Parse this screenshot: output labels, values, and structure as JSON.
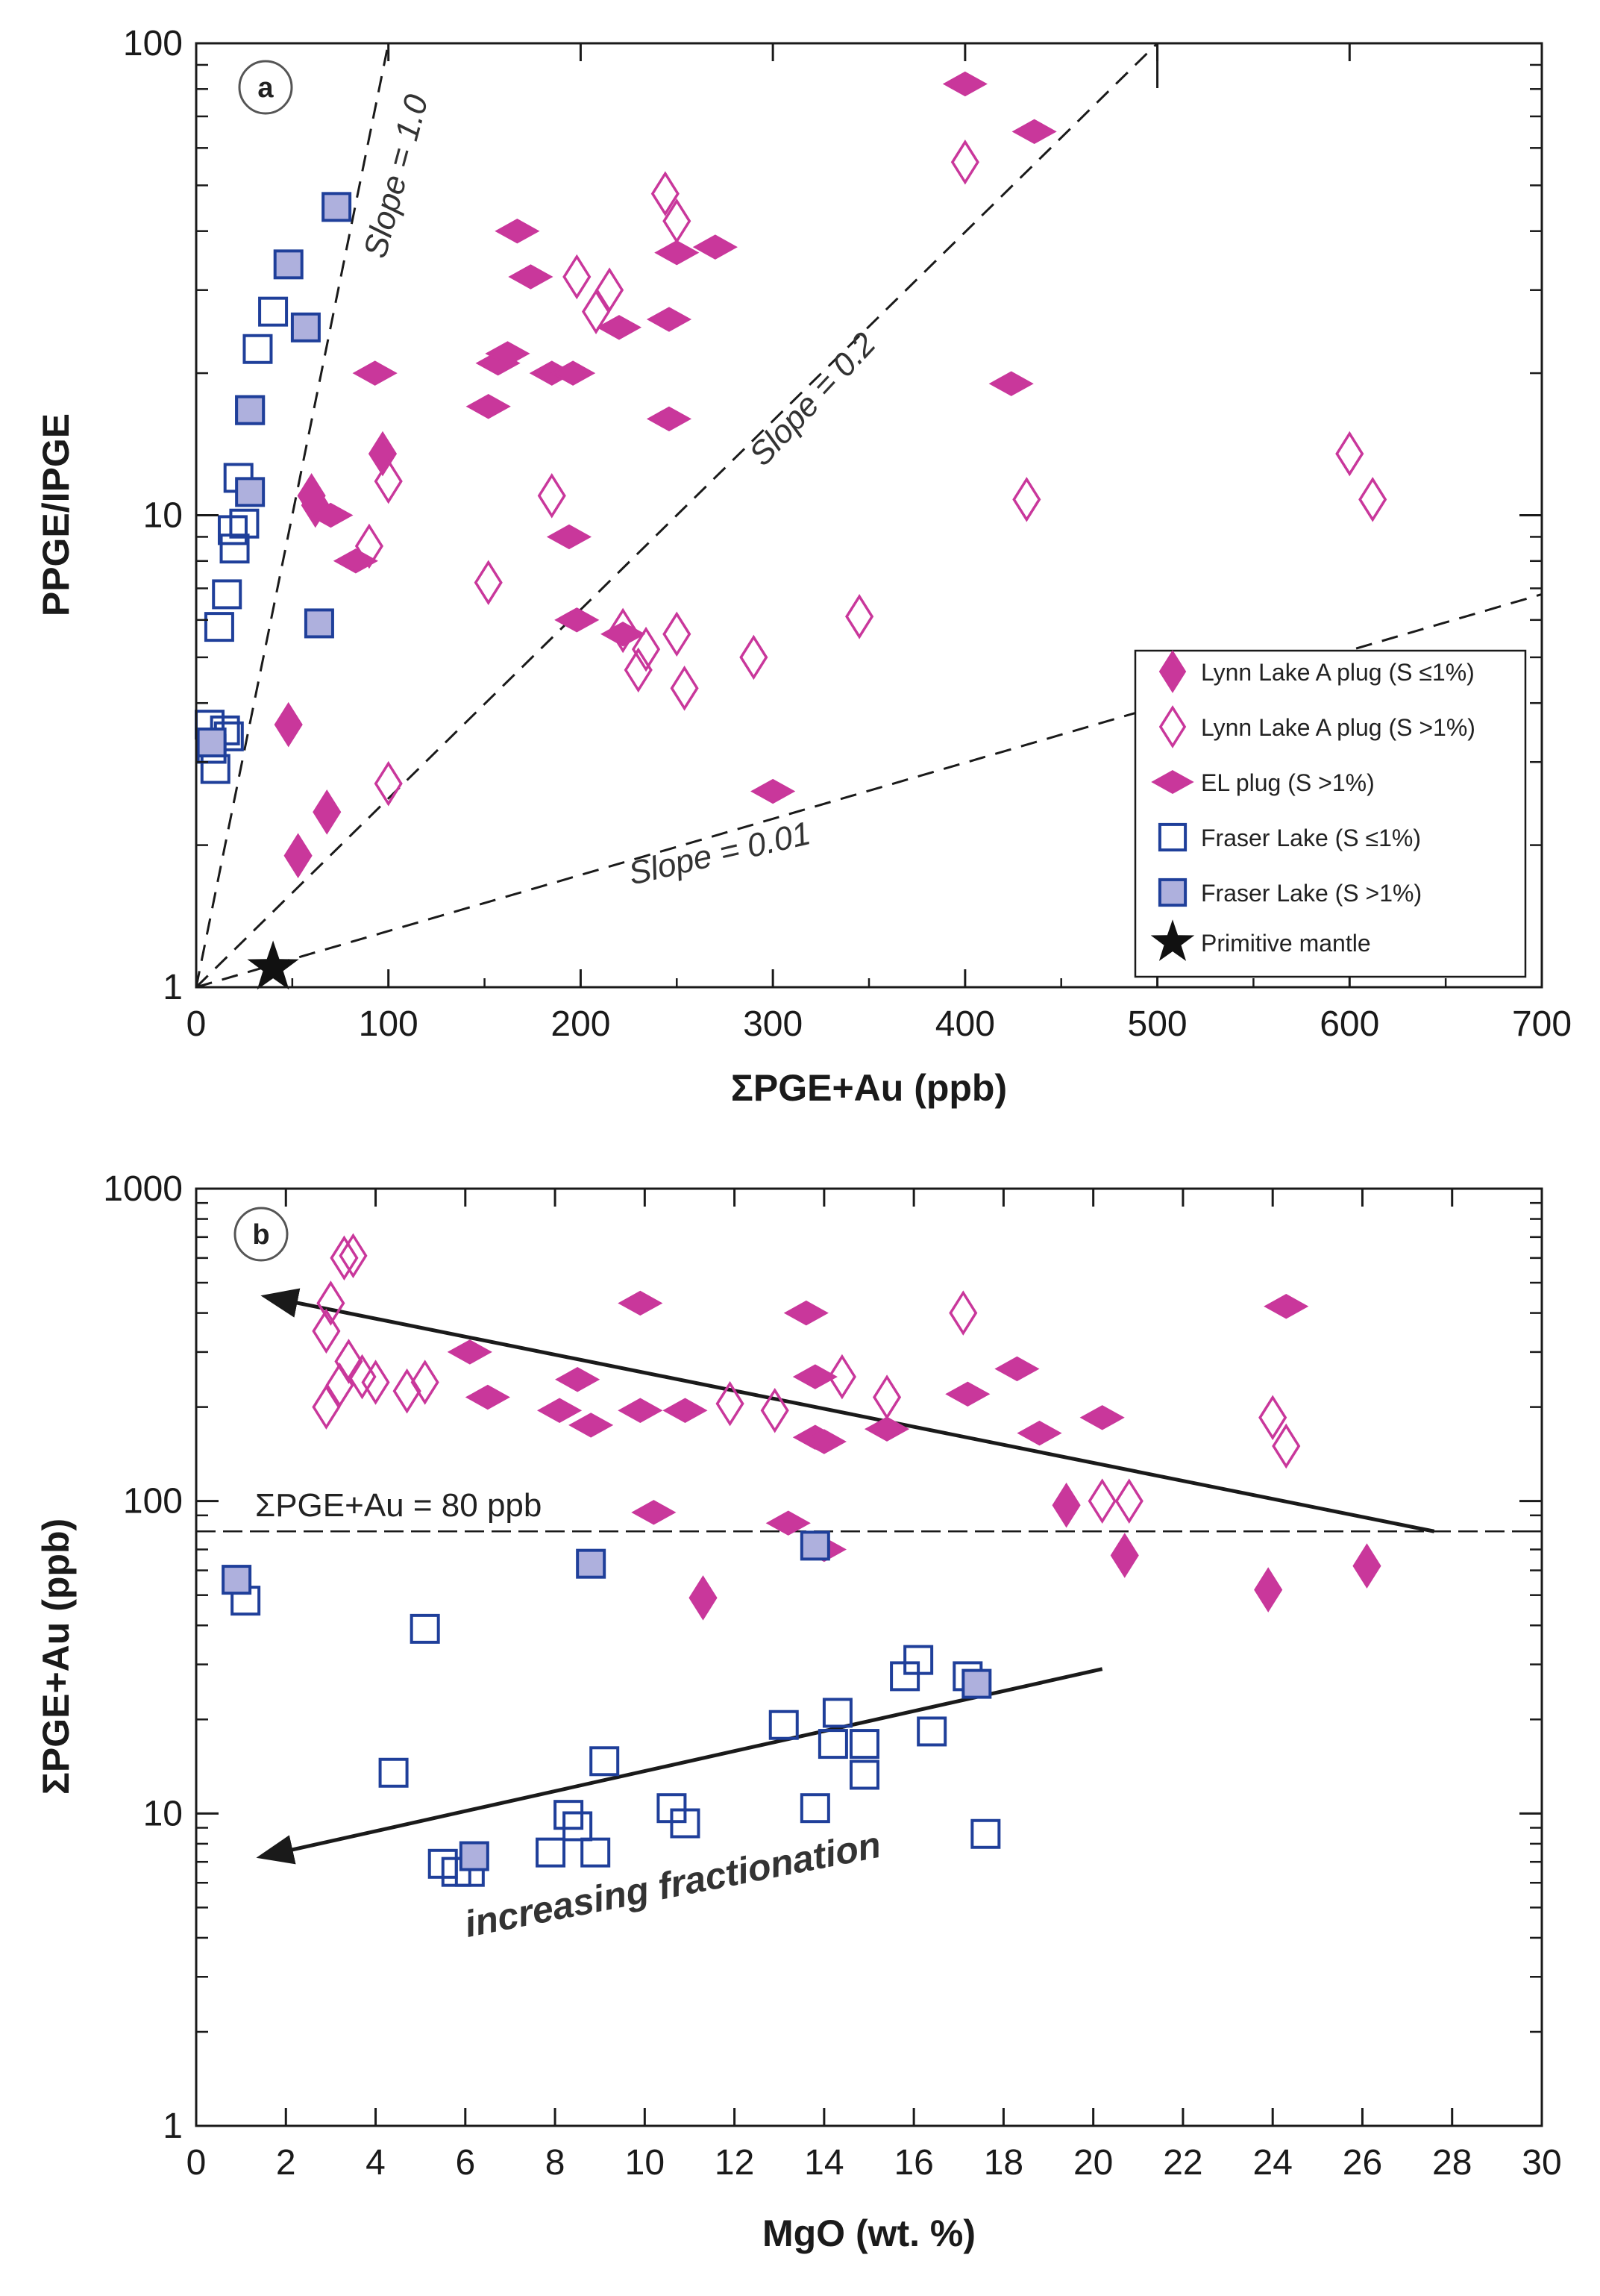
{
  "colors": {
    "magenta": "#c9379b",
    "blue": "#1f3f9a",
    "lightblue": "#aeb0dd",
    "black": "#111111"
  },
  "chart_data": [
    {
      "panel": "a",
      "type": "scatter",
      "xscale": "linear",
      "yscale": "log",
      "xlim": [
        0,
        700
      ],
      "ylim": [
        1,
        100
      ],
      "xlabel": "ΣPGE+Au (ppb)",
      "ylabel": "PPGE/IPGE",
      "xticks": [
        0,
        100,
        200,
        300,
        400,
        500,
        600,
        700
      ],
      "yticks": [
        1,
        10,
        100
      ],
      "lines": [
        {
          "label": "Slope = 1.0",
          "points": [
            [
              0,
              1
            ],
            [
              100,
              100
            ]
          ]
        },
        {
          "label": "Slope = 0.2",
          "points": [
            [
              0,
              1
            ],
            [
              500,
              100
            ]
          ]
        },
        {
          "label": "Slope = 0.01",
          "points": [
            [
              0,
              1
            ],
            [
              700,
              6.8
            ]
          ]
        }
      ],
      "series": [
        {
          "name": "Lynn Lake A plug (S ≤1%)",
          "marker": "diamond-tall-filled",
          "points": [
            [
              48,
              3.6
            ],
            [
              53,
              1.9
            ],
            [
              60,
              11
            ],
            [
              62,
              10.5
            ],
            [
              68,
              2.35
            ],
            [
              97,
              13.5
            ]
          ]
        },
        {
          "name": "Lynn Lake A plug (S >1%)",
          "marker": "diamond-tall-open",
          "points": [
            [
              90,
              8.6
            ],
            [
              100,
              11.8
            ],
            [
              100,
              2.7
            ],
            [
              152,
              7.2
            ],
            [
              185,
              11
            ],
            [
              198,
              32
            ],
            [
              208,
              27
            ],
            [
              215,
              30
            ],
            [
              222,
              5.7
            ],
            [
              230,
              4.7
            ],
            [
              234,
              5.2
            ],
            [
              244,
              48
            ],
            [
              250,
              5.6
            ],
            [
              250,
              42
            ],
            [
              254,
              4.3
            ],
            [
              290,
              5
            ],
            [
              345,
              6.1
            ],
            [
              400,
              56
            ],
            [
              432,
              10.8
            ],
            [
              600,
              13.5
            ],
            [
              612,
              10.8
            ]
          ]
        },
        {
          "name": "EL plug (S >1%)",
          "marker": "diamond-wide-filled",
          "points": [
            [
              70,
              10
            ],
            [
              83,
              8
            ],
            [
              93,
              20
            ],
            [
              152,
              17
            ],
            [
              157,
              21
            ],
            [
              162,
              22
            ],
            [
              167,
              40
            ],
            [
              174,
              32
            ],
            [
              185,
              20
            ],
            [
              196,
              20
            ],
            [
              198,
              6
            ],
            [
              194,
              9
            ],
            [
              220,
              25
            ],
            [
              222,
              5.6
            ],
            [
              246,
              26
            ],
            [
              246,
              16
            ],
            [
              250,
              36
            ],
            [
              270,
              37
            ],
            [
              300,
              2.6
            ],
            [
              400,
              82
            ],
            [
              424,
              19
            ],
            [
              436,
              65
            ]
          ]
        },
        {
          "name": "Fraser Lake (S ≤1%)",
          "marker": "square-open",
          "points": [
            [
              7,
              3.6
            ],
            [
              8,
              3.2
            ],
            [
              10,
              2.9
            ],
            [
              12,
              5.8
            ],
            [
              15,
              3.5
            ],
            [
              16,
              6.8
            ],
            [
              17,
              3.4
            ],
            [
              19,
              9.3
            ],
            [
              20,
              8.5
            ],
            [
              22,
              12
            ],
            [
              25,
              9.6
            ],
            [
              28,
              16.7
            ],
            [
              32,
              22.5
            ],
            [
              40,
              27
            ]
          ]
        },
        {
          "name": "Fraser Lake (S >1%)",
          "marker": "square-filled",
          "points": [
            [
              8,
              3.3
            ],
            [
              28,
              16.7
            ],
            [
              28,
              11.2
            ],
            [
              48,
              34
            ],
            [
              57,
              25
            ],
            [
              64,
              5.9
            ],
            [
              73,
              45
            ]
          ]
        },
        {
          "name": "Primitive mantle",
          "marker": "star",
          "points": [
            [
              40,
              1.1
            ]
          ]
        }
      ],
      "legend": [
        "Lynn Lake A plug (S ≤1%)",
        "Lynn Lake A plug (S >1%)",
        "EL plug (S >1%)",
        "Fraser Lake (S ≤1%)",
        "Fraser Lake (S >1%)",
        "Primitive mantle"
      ]
    },
    {
      "panel": "b",
      "type": "scatter",
      "xscale": "linear",
      "yscale": "log",
      "xlim": [
        0,
        30
      ],
      "ylim": [
        1,
        1000
      ],
      "xlabel": "MgO (wt. %)",
      "ylabel": "ΣPGE+Au (ppb)",
      "xticks": [
        0,
        2,
        4,
        6,
        8,
        10,
        12,
        14,
        16,
        18,
        20,
        22,
        24,
        26,
        28,
        30
      ],
      "yticks": [
        1,
        10,
        100,
        1000
      ],
      "hline": {
        "y": 80,
        "label": "ΣPGE+Au = 80 ppb"
      },
      "arrows": [
        {
          "from": [
            27.6,
            80
          ],
          "to": [
            1.6,
            450
          ]
        },
        {
          "from": [
            20.2,
            29
          ],
          "to": [
            1.5,
            7.3
          ],
          "label": "increasing fractionation"
        }
      ],
      "series": [
        {
          "name": "Lynn Lake A plug (S ≤1%)",
          "marker": "diamond-tall-filled",
          "points": [
            [
              11.3,
              49
            ],
            [
              19.4,
              97
            ],
            [
              20.7,
              67
            ],
            [
              23.9,
              52
            ],
            [
              26.1,
              62
            ]
          ]
        },
        {
          "name": "Lynn Lake A plug (S >1%)",
          "marker": "diamond-tall-open",
          "points": [
            [
              2.9,
              200
            ],
            [
              3.2,
              235
            ],
            [
              2.9,
              350
            ],
            [
              3.0,
              430
            ],
            [
              3.3,
              600
            ],
            [
              3.5,
              610
            ],
            [
              3.4,
              280
            ],
            [
              3.7,
              250
            ],
            [
              4.0,
              240
            ],
            [
              4.7,
              225
            ],
            [
              5.1,
              240
            ],
            [
              11.9,
              205
            ],
            [
              12.9,
              195
            ],
            [
              14.4,
              250
            ],
            [
              15.4,
              215
            ],
            [
              17.1,
              400
            ],
            [
              20.2,
              100
            ],
            [
              20.8,
              100
            ],
            [
              24.0,
              185
            ],
            [
              24.3,
              150
            ]
          ]
        },
        {
          "name": "EL plug (S >1%)",
          "marker": "diamond-wide-filled",
          "points": [
            [
              6.1,
              300
            ],
            [
              6.5,
              215
            ],
            [
              8.1,
              195
            ],
            [
              8.5,
              245
            ],
            [
              8.8,
              175
            ],
            [
              9.9,
              195
            ],
            [
              9.9,
              430
            ],
            [
              10.2,
              92
            ],
            [
              10.9,
              195
            ],
            [
              13.2,
              85
            ],
            [
              13.6,
              400
            ],
            [
              13.8,
              250
            ],
            [
              13.8,
              160
            ],
            [
              14.0,
              155
            ],
            [
              14.0,
              70
            ],
            [
              15.4,
              170
            ],
            [
              17.2,
              220
            ],
            [
              18.3,
              265
            ],
            [
              18.8,
              165
            ],
            [
              20.2,
              185
            ],
            [
              24.3,
              420
            ]
          ]
        },
        {
          "name": "Fraser Lake (S ≤1%)",
          "marker": "square-open",
          "points": [
            [
              1.1,
              48
            ],
            [
              4.4,
              13.5
            ],
            [
              5.1,
              39
            ],
            [
              5.5,
              6.9
            ],
            [
              5.8,
              6.5
            ],
            [
              6.1,
              6.5
            ],
            [
              7.9,
              7.5
            ],
            [
              8.3,
              9.9
            ],
            [
              8.5,
              9.1
            ],
            [
              8.9,
              7.5
            ],
            [
              9.1,
              14.7
            ],
            [
              10.6,
              10.4
            ],
            [
              10.9,
              9.3
            ],
            [
              13.1,
              19.2
            ],
            [
              13.8,
              10.4
            ],
            [
              14.2,
              16.7
            ],
            [
              14.3,
              21
            ],
            [
              14.9,
              16.7
            ],
            [
              14.9,
              13.3
            ],
            [
              15.8,
              27.5
            ],
            [
              16.1,
              31
            ],
            [
              16.4,
              18.3
            ],
            [
              17.2,
              27.5
            ],
            [
              17.6,
              8.6
            ]
          ]
        },
        {
          "name": "Fraser Lake (S >1%)",
          "marker": "square-filled",
          "points": [
            [
              0.9,
              56
            ],
            [
              6.2,
              7.3
            ],
            [
              8.8,
              63
            ],
            [
              13.8,
              72
            ],
            [
              17.4,
              26
            ]
          ]
        }
      ]
    }
  ]
}
